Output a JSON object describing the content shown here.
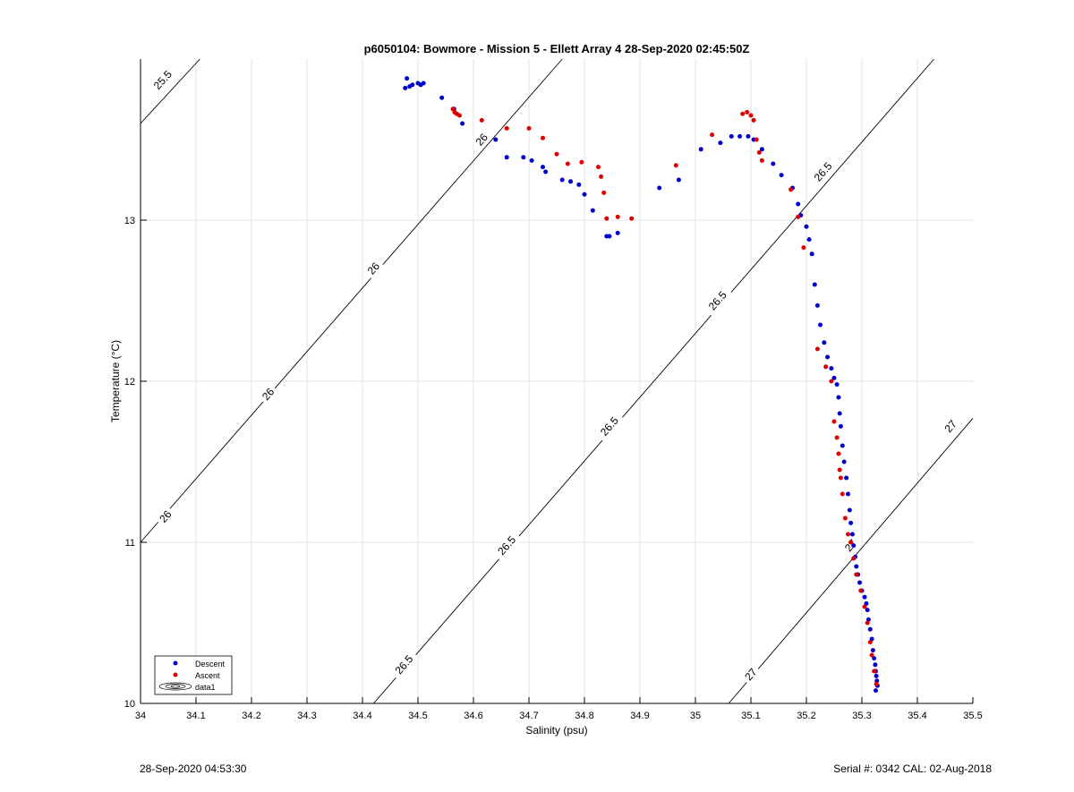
{
  "footer": {
    "left_timestamp": "28-Sep-2020 04:53:30",
    "right_serial": "Serial #: 0342  CAL: 02-Aug-2018"
  },
  "chart_data": {
    "type": "scatter",
    "title": "p6050104: Bowmore - Mission 5 - Ellett Array 4 28-Sep-2020 02:45:50Z",
    "xlabel": "Salinity (psu)",
    "ylabel": "Temperature (°C)",
    "xlim": [
      34,
      35.5
    ],
    "ylim": [
      10,
      14
    ],
    "xticks": [
      34,
      34.1,
      34.2,
      34.3,
      34.4,
      34.5,
      34.6,
      34.7,
      34.8,
      34.9,
      35,
      35.1,
      35.2,
      35.3,
      35.4,
      35.5
    ],
    "xtick_labels": [
      "34",
      "34.1",
      "34.2",
      "34.3",
      "34.4",
      "34.5",
      "34.6",
      "34.7",
      "34.8",
      "34.9",
      "35",
      "35.1",
      "35.2",
      "35.3",
      "35.4",
      "35.5"
    ],
    "yticks": [
      10,
      11,
      12,
      13
    ],
    "ytick_labels": [
      "10",
      "11",
      "12",
      "13"
    ],
    "grid": true,
    "legend_position": "bottom-left",
    "legend": [
      "Descent",
      "Ascent",
      "data1"
    ],
    "series": [
      {
        "name": "Descent",
        "color": "#0000cc",
        "x": [
          34.477,
          34.48,
          34.485,
          34.49,
          34.5,
          34.505,
          34.51,
          34.543,
          34.565,
          34.58,
          34.64,
          34.66,
          34.69,
          34.705,
          34.725,
          34.73,
          34.76,
          34.775,
          34.79,
          34.8,
          34.815,
          34.84,
          34.845,
          34.86,
          34.935,
          34.97,
          35.01,
          35.045,
          35.065,
          35.08,
          35.095,
          35.105,
          35.12,
          35.14,
          35.155,
          35.175,
          35.185,
          35.19,
          35.2,
          35.205,
          35.21,
          35.215,
          35.22,
          35.225,
          35.232,
          35.238,
          35.245,
          35.25,
          35.255,
          35.258,
          35.26,
          35.262,
          35.265,
          35.268,
          35.272,
          35.275,
          35.278,
          35.28,
          35.283,
          35.285,
          35.288,
          35.29,
          35.293,
          35.296,
          35.3,
          35.305,
          35.308,
          35.31,
          35.312,
          35.315,
          35.318,
          35.32,
          35.322,
          35.324,
          35.325,
          35.326,
          35.327,
          35.328,
          35.325
        ],
        "y": [
          13.82,
          13.88,
          13.83,
          13.84,
          13.85,
          13.84,
          13.85,
          13.76,
          13.69,
          13.6,
          13.5,
          13.39,
          13.39,
          13.37,
          13.33,
          13.3,
          13.25,
          13.24,
          13.22,
          13.16,
          13.06,
          12.9,
          12.9,
          12.92,
          13.2,
          13.25,
          13.44,
          13.48,
          13.52,
          13.52,
          13.52,
          13.5,
          13.44,
          13.35,
          13.28,
          13.2,
          13.1,
          13.03,
          12.96,
          12.88,
          12.79,
          12.6,
          12.47,
          12.35,
          12.24,
          12.15,
          12.08,
          12.02,
          11.98,
          11.9,
          11.8,
          11.72,
          11.6,
          11.5,
          11.4,
          11.3,
          11.2,
          11.12,
          11.05,
          10.98,
          10.91,
          10.85,
          10.8,
          10.75,
          10.7,
          10.66,
          10.62,
          10.58,
          10.52,
          10.46,
          10.4,
          10.33,
          10.28,
          10.24,
          10.2,
          10.17,
          10.14,
          10.11,
          10.08
        ]
      },
      {
        "name": "Ascent",
        "color": "#dd0000",
        "x": [
          34.563,
          34.566,
          34.57,
          34.575,
          34.615,
          34.66,
          34.7,
          34.725,
          34.75,
          34.77,
          34.795,
          34.825,
          34.83,
          34.835,
          34.84,
          34.86,
          34.885,
          34.965,
          35.03,
          35.085,
          35.093,
          35.1,
          35.105,
          35.11,
          35.115,
          35.12,
          35.172,
          35.185,
          35.195,
          35.22,
          35.235,
          35.245,
          35.25,
          35.255,
          35.258,
          35.26,
          35.262,
          35.265,
          35.27,
          35.275,
          35.28,
          35.285,
          35.29,
          35.298,
          35.305,
          35.31,
          35.315,
          35.318,
          35.322,
          35.326
        ],
        "y": [
          13.69,
          13.67,
          13.66,
          13.65,
          13.62,
          13.57,
          13.57,
          13.51,
          13.41,
          13.35,
          13.36,
          13.33,
          13.27,
          13.17,
          13.01,
          13.02,
          13.01,
          13.34,
          13.53,
          13.66,
          13.67,
          13.65,
          13.62,
          13.5,
          13.42,
          13.37,
          13.19,
          13.02,
          12.83,
          12.2,
          12.09,
          12.0,
          11.75,
          11.65,
          11.55,
          11.45,
          11.4,
          11.3,
          11.15,
          11.05,
          11.0,
          10.9,
          10.8,
          10.7,
          10.6,
          10.5,
          10.38,
          10.3,
          10.2,
          10.12
        ]
      }
    ],
    "isopycnals": [
      {
        "name": "25.5",
        "segment": [
          [
            34,
            13.6
          ],
          [
            34.107,
            14.0
          ]
        ],
        "labels": [
          {
            "text": "25.5",
            "at": [
              34.04,
              13.87
            ]
          }
        ]
      },
      {
        "name": "26",
        "segment": [
          [
            34,
            11.0
          ],
          [
            34.76,
            14.0
          ]
        ],
        "labels": [
          {
            "text": "26",
            "at": [
              34.045,
              11.16
            ]
          },
          {
            "text": "26",
            "at": [
              34.23,
              11.92
            ]
          },
          {
            "text": "26",
            "at": [
              34.42,
              12.7
            ]
          },
          {
            "text": "26",
            "at": [
              34.615,
              13.5
            ]
          }
        ]
      },
      {
        "name": "26.5",
        "segment": [
          [
            34.42,
            10.0
          ],
          [
            35.43,
            14.0
          ]
        ],
        "labels": [
          {
            "text": "26.5",
            "at": [
              34.475,
              10.24
            ]
          },
          {
            "text": "26.5",
            "at": [
              34.66,
              10.98
            ]
          },
          {
            "text": "26.5",
            "at": [
              34.845,
              11.72
            ]
          },
          {
            "text": "26.5",
            "at": [
              35.04,
              12.5
            ]
          },
          {
            "text": "26.5",
            "at": [
              35.23,
              13.3
            ]
          }
        ]
      },
      {
        "name": "27",
        "segment": [
          [
            35.06,
            10.0
          ],
          [
            35.5,
            11.77
          ]
        ],
        "labels": [
          {
            "text": "27",
            "at": [
              35.1,
              10.18
            ]
          },
          {
            "text": "27",
            "at": [
              35.28,
              10.98
            ]
          },
          {
            "text": "27",
            "at": [
              35.46,
              11.72
            ]
          }
        ]
      }
    ]
  }
}
